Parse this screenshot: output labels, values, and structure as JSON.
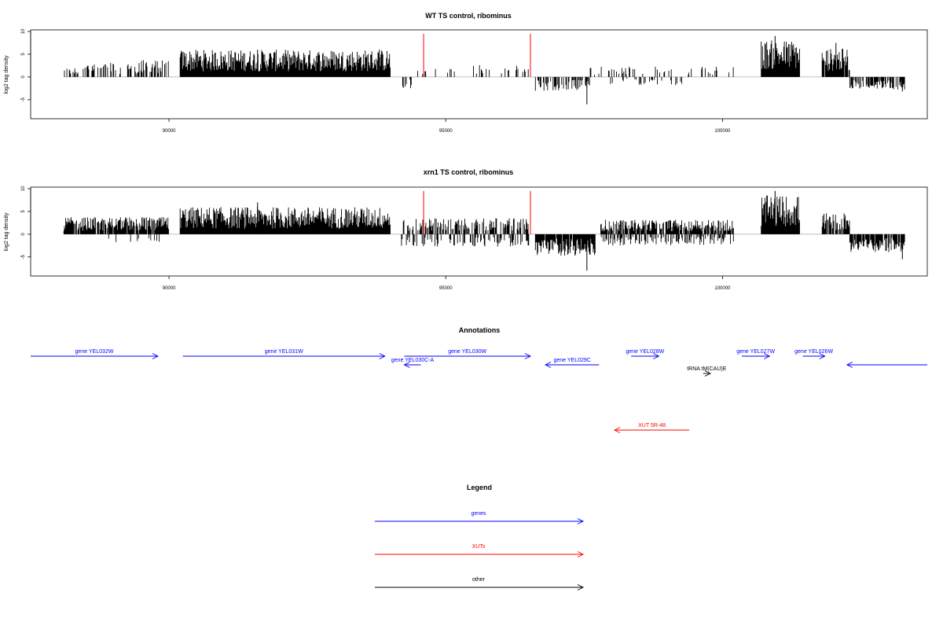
{
  "colors": {
    "gene": "#0000ff",
    "xut": "#ff0000",
    "other": "#000000",
    "baseline": "#aaaaaa",
    "marker": "#ff0000"
  },
  "chart_data": [
    {
      "type": "bar",
      "title": "WT TS control, ribominus",
      "ylabel": "log2 tag density",
      "xlim": [
        87500,
        103700
      ],
      "ylim": [
        -9,
        10
      ],
      "x_ticks": [
        90000,
        95000,
        100000
      ],
      "y_ticks": [
        -5,
        0,
        5,
        10
      ],
      "marker_lines": [
        94600,
        96530
      ],
      "segments": [
        {
          "start": 88100,
          "end": 88400,
          "polarity": 1,
          "amp": 1.6,
          "density": 0.45
        },
        {
          "start": 88450,
          "end": 89200,
          "polarity": 1,
          "amp": 2.6,
          "density": 0.4
        },
        {
          "start": 89250,
          "end": 90000,
          "polarity": 1,
          "amp": 3.0,
          "density": 0.5
        },
        {
          "start": 90200,
          "end": 94000,
          "polarity": 1,
          "amp": 4.8,
          "density": 1.0
        },
        {
          "start": 94200,
          "end": 94400,
          "polarity": -1,
          "amp": 2.0,
          "density": 0.3
        },
        {
          "start": 94450,
          "end": 95200,
          "polarity": 1,
          "amp": 1.5,
          "density": 0.15
        },
        {
          "start": 95500,
          "end": 96500,
          "polarity": 1,
          "amp": 2.2,
          "density": 0.2
        },
        {
          "start": 96620,
          "end": 97600,
          "polarity": -1,
          "amp": 2.5,
          "density": 0.45
        },
        {
          "start": 97600,
          "end": 99500,
          "polarity": 1,
          "amp": 1.8,
          "density": 0.2
        },
        {
          "start": 97900,
          "end": 99300,
          "polarity": -1,
          "amp": 1.5,
          "density": 0.15
        },
        {
          "start": 99600,
          "end": 100300,
          "polarity": 1,
          "amp": 2.0,
          "density": 0.15
        },
        {
          "start": 100700,
          "end": 101400,
          "polarity": 1,
          "amp": 6.5,
          "density": 1.0
        },
        {
          "start": 101800,
          "end": 102300,
          "polarity": 1,
          "amp": 5.0,
          "density": 0.9
        },
        {
          "start": 102300,
          "end": 103300,
          "polarity": -1,
          "amp": 2.2,
          "density": 0.6
        }
      ],
      "spikes": [
        {
          "x": 97550,
          "y": -6
        },
        {
          "x": 100950,
          "y": 9
        },
        {
          "x": 102050,
          "y": 7.5
        },
        {
          "x": 91600,
          "y": 6
        },
        {
          "x": 93800,
          "y": 6
        },
        {
          "x": 103250,
          "y": -3.2
        }
      ]
    },
    {
      "type": "bar",
      "title": "xrn1 TS control, ribominus",
      "ylabel": "log2 tag density",
      "xlim": [
        87500,
        103700
      ],
      "ylim": [
        -9,
        10
      ],
      "x_ticks": [
        90000,
        95000,
        100000
      ],
      "y_ticks": [
        -5,
        0,
        5,
        10
      ],
      "marker_lines": [
        94600,
        96530
      ],
      "segments": [
        {
          "start": 88100,
          "end": 90000,
          "polarity": 1,
          "amp": 3.0,
          "density": 0.9
        },
        {
          "start": 88800,
          "end": 89900,
          "polarity": -1,
          "amp": 1.5,
          "density": 0.12
        },
        {
          "start": 90200,
          "end": 94000,
          "polarity": 1,
          "amp": 4.8,
          "density": 1.0
        },
        {
          "start": 94200,
          "end": 96500,
          "polarity": 1,
          "amp": 2.8,
          "density": 0.55
        },
        {
          "start": 94200,
          "end": 96500,
          "polarity": -1,
          "amp": 2.2,
          "density": 0.3
        },
        {
          "start": 96620,
          "end": 97700,
          "polarity": -1,
          "amp": 3.8,
          "density": 0.95
        },
        {
          "start": 97800,
          "end": 100200,
          "polarity": 1,
          "amp": 2.6,
          "density": 0.75
        },
        {
          "start": 97800,
          "end": 100200,
          "polarity": -1,
          "amp": 2.0,
          "density": 0.45
        },
        {
          "start": 100700,
          "end": 101400,
          "polarity": 1,
          "amp": 6.8,
          "density": 1.0
        },
        {
          "start": 101800,
          "end": 102300,
          "polarity": 1,
          "amp": 3.8,
          "density": 0.9
        },
        {
          "start": 102300,
          "end": 103300,
          "polarity": -1,
          "amp": 3.2,
          "density": 0.85
        }
      ],
      "spikes": [
        {
          "x": 97550,
          "y": -8
        },
        {
          "x": 100950,
          "y": 9.5
        },
        {
          "x": 91600,
          "y": 7
        },
        {
          "x": 103250,
          "y": -5.5
        }
      ]
    }
  ],
  "annotations": {
    "title": "Annotations",
    "features": [
      {
        "label": "gene YEL032W",
        "kind": "gene",
        "start": 87500,
        "end": 89800,
        "dir": "right",
        "row": 0
      },
      {
        "label": "gene YEL031W",
        "kind": "gene",
        "start": 90250,
        "end": 93900,
        "dir": "right",
        "row": 0
      },
      {
        "label": "gene YEL030C-A",
        "kind": "gene",
        "start": 94250,
        "end": 94550,
        "dir": "left",
        "row": 1
      },
      {
        "label": "gene YEL030W",
        "kind": "gene",
        "start": 94250,
        "end": 96530,
        "dir": "right",
        "row": 0
      },
      {
        "label": "gene YEL029C",
        "kind": "gene",
        "start": 96800,
        "end": 97770,
        "dir": "left",
        "row": 1
      },
      {
        "label": "gene YEL028W",
        "kind": "gene",
        "start": 98350,
        "end": 98850,
        "dir": "right",
        "row": 0
      },
      {
        "label": "tRNA tM(CAU)E",
        "kind": "other",
        "start": 99650,
        "end": 99780,
        "dir": "right",
        "row": 2
      },
      {
        "label": "gene YEL027W",
        "kind": "gene",
        "start": 100350,
        "end": 100850,
        "dir": "right",
        "row": 0
      },
      {
        "label": "gene YEL026W",
        "kind": "gene",
        "start": 101450,
        "end": 101850,
        "dir": "right",
        "row": 0
      },
      {
        "label": "",
        "kind": "gene",
        "start": 102250,
        "end": 103700,
        "dir": "left",
        "row": 1
      },
      {
        "label": "XUT 5R-48",
        "kind": "xut",
        "start": 98050,
        "end": 99400,
        "dir": "left",
        "row": 3
      }
    ]
  },
  "legend": {
    "title": "Legend",
    "entries": [
      {
        "label": "genes",
        "kind": "gene"
      },
      {
        "label": "XUTs",
        "kind": "xut"
      },
      {
        "label": "other",
        "kind": "other"
      }
    ]
  }
}
